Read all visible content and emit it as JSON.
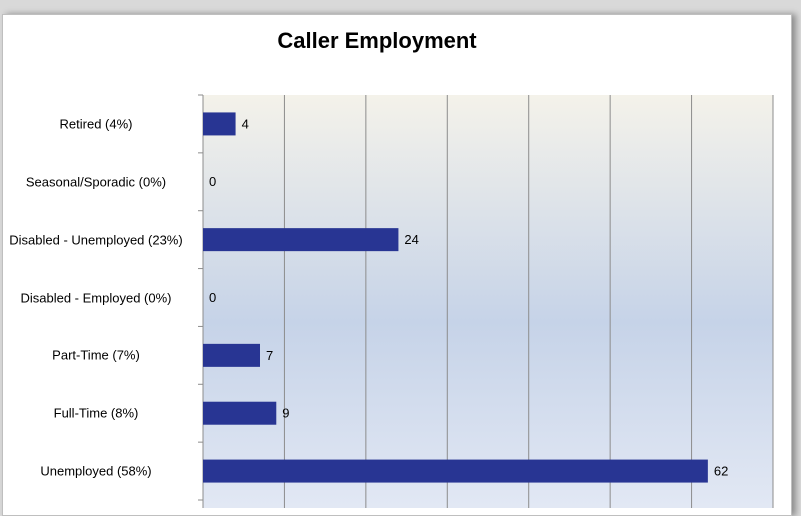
{
  "chart_data": {
    "type": "hbar",
    "title": "Caller Employment",
    "categories": [
      "Retired (4%)",
      "Seasonal/Sporadic (0%)",
      "Disabled - Unemployed (23%)",
      "Disabled - Employed (0%)",
      "Part-Time (7%)",
      "Full-Time (8%)",
      "Unemployed (58%)"
    ],
    "values": [
      4,
      0,
      24,
      0,
      7,
      9,
      62
    ],
    "color": "#283593",
    "xlim": [
      0,
      70
    ],
    "xticks": [
      0,
      10,
      20,
      30,
      40,
      50,
      60,
      70
    ],
    "grid": true
  }
}
